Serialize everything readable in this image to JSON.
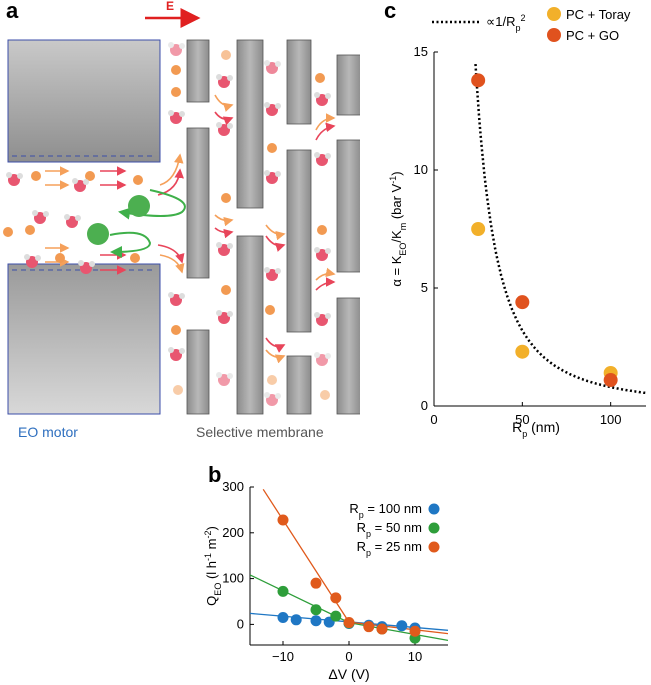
{
  "panel_a": {
    "letter": "a",
    "field_label": "E",
    "eo_motor_label": "EO motor",
    "membrane_label": "Selective membrane",
    "colors": {
      "water_o": "#e85670",
      "ion_orange": "#f29a52",
      "large_ion": "#4caf50",
      "plate": "#9e9e9e",
      "arrow_red": "#e8455a",
      "arrow_orange": "#f5a05a",
      "arrow_green": "#3fb04a",
      "motor_label": "#2e6fbf"
    }
  },
  "panel_b": {
    "letter": "b",
    "ylabel": "Q_EO (l h^-1 m^-2)",
    "xlabel": "ΔV (V)",
    "legend": [
      {
        "text": "R_p = 100 nm",
        "color": "#1f77c4"
      },
      {
        "text": "R_p = 50 nm",
        "color": "#2e9e3a"
      },
      {
        "text": "R_p = 25 nm",
        "color": "#e05a1c"
      }
    ],
    "ticks_x": [
      "−10",
      "0",
      "10"
    ],
    "ticks_y": [
      "0",
      "100",
      "200",
      "300"
    ]
  },
  "panel_c": {
    "letter": "c",
    "legend_fit": "∝1/R_p^2",
    "legend_series": [
      {
        "text": "PC + Toray",
        "color": "#f2b02a"
      },
      {
        "text": "PC + GO",
        "color": "#e0521e"
      }
    ],
    "ylabel": "α = K_EO/K_m (bar V^-1)",
    "xlabel": "R_p (nm)",
    "ticks_x": [
      "0",
      "50",
      "100"
    ],
    "ticks_y": [
      "0",
      "5",
      "10",
      "15"
    ]
  },
  "chart_data": [
    {
      "type": "scatter",
      "xlim": [
        -15,
        15
      ],
      "ylim": [
        -45,
        300
      ],
      "x_ticks": [
        -10,
        0,
        10
      ],
      "y_ticks": [
        0,
        100,
        200,
        300
      ],
      "series": [
        {
          "name": "R_p = 100 nm",
          "color": "#1f77c4",
          "points": [
            [
              -10,
              15
            ],
            [
              -8,
              10
            ],
            [
              -5,
              8
            ],
            [
              -3,
              5
            ],
            [
              0,
              2
            ],
            [
              3,
              -2
            ],
            [
              5,
              -5
            ],
            [
              8,
              -3
            ],
            [
              10,
              -8
            ]
          ],
          "fit": [
            [
              -15,
              24
            ],
            [
              15,
              -13
            ]
          ]
        },
        {
          "name": "R_p = 50 nm",
          "color": "#2e9e3a",
          "points": [
            [
              -10,
              72
            ],
            [
              -5,
              32
            ],
            [
              -2,
              18
            ],
            [
              0,
              3
            ],
            [
              5,
              -10
            ],
            [
              10,
              -30
            ]
          ],
          "fit": [
            [
              -15,
              108
            ],
            [
              0,
              4
            ],
            [
              15,
              -35
            ]
          ]
        },
        {
          "name": "R_p = 25 nm",
          "color": "#e05a1c",
          "points": [
            [
              -10,
              228
            ],
            [
              -5,
              90
            ],
            [
              -2,
              58
            ],
            [
              0,
              4
            ],
            [
              3,
              -5
            ],
            [
              5,
              -10
            ],
            [
              10,
              -15
            ]
          ],
          "fit": [
            [
              -13,
              295
            ],
            [
              0,
              5
            ],
            [
              15,
              -20
            ]
          ]
        }
      ]
    },
    {
      "type": "scatter",
      "xlim": [
        0,
        120
      ],
      "ylim": [
        0,
        15
      ],
      "x_ticks": [
        0,
        50,
        100
      ],
      "y_ticks": [
        0,
        5,
        10,
        15
      ],
      "series": [
        {
          "name": "PC + Toray",
          "color": "#f2b02a",
          "points": [
            [
              25,
              7.5
            ],
            [
              50,
              2.3
            ],
            [
              100,
              1.4
            ]
          ]
        },
        {
          "name": "PC + GO",
          "color": "#e0521e",
          "points": [
            [
              25,
              13.8
            ],
            [
              50,
              4.4
            ],
            [
              100,
              1.1
            ]
          ]
        }
      ],
      "fit": {
        "name": "∝1/R_p^2",
        "k": 8000
      }
    }
  ]
}
